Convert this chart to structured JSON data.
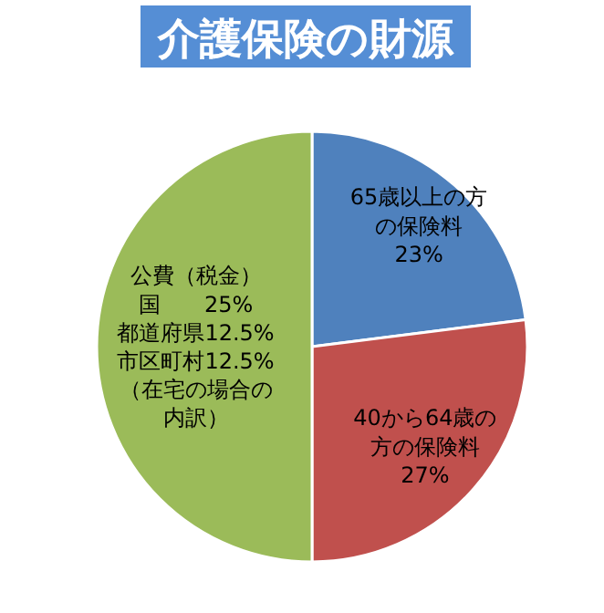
{
  "chart_data": {
    "type": "pie",
    "title": "介護保険の財源",
    "categories": [
      "65歳以上の方の保険料",
      "40から64歳の方の保険料",
      "公費（税金）国　　25%都道府県12.5%市区町村12.5%（在宅の場合の内訳）"
    ],
    "values": [
      23,
      27,
      50
    ],
    "value_labels": [
      "23%",
      "27%",
      null
    ],
    "colors": [
      "#4f81bd",
      "#c0504d",
      "#9bbb59"
    ]
  }
}
